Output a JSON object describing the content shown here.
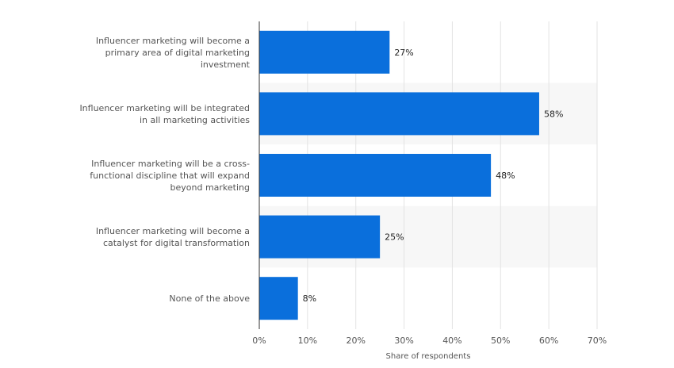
{
  "chart_data": {
    "type": "bar",
    "orientation": "horizontal",
    "categories": [
      [
        "Influencer marketing will become a",
        "primary area of digital marketing",
        "investment"
      ],
      [
        "Influencer marketing will be integrated",
        "in all marketing activities"
      ],
      [
        "Influencer marketing will be a cross-",
        "functional discipline that will expand",
        "beyond marketing"
      ],
      [
        "Influencer marketing will become a",
        "catalyst for digital transformation"
      ],
      [
        "None of the above"
      ]
    ],
    "values": [
      27,
      58,
      48,
      25,
      8
    ],
    "value_labels": [
      "27%",
      "58%",
      "48%",
      "25%",
      "8%"
    ],
    "xlabel": "Share of respondents",
    "ylabel": "",
    "xlim": [
      0,
      70
    ],
    "x_ticks": [
      0,
      10,
      20,
      30,
      40,
      50,
      60,
      70
    ],
    "x_tick_labels": [
      "0%",
      "10%",
      "20%",
      "30%",
      "40%",
      "50%",
      "60%",
      "70%"
    ],
    "grid": true,
    "alternating_row_shading": true,
    "colors": {
      "bar": "#0a6fdc",
      "grid": "#e3e3e3",
      "shade": "#f7f7f7",
      "axis": "#333333",
      "text": "#555555",
      "value_text": "#222222"
    }
  }
}
